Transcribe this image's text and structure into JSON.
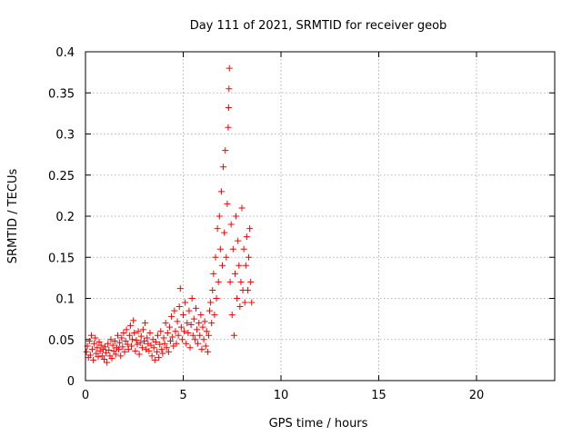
{
  "chart_data": {
    "type": "scatter",
    "title": "Day 111 of 2021, SRMTID for receiver geob",
    "xlabel": "GPS time / hours",
    "ylabel": "SRMTID / TECUs",
    "xlim": [
      0,
      24
    ],
    "ylim": [
      0,
      0.4
    ],
    "grid": true,
    "marker": "+",
    "color": "#ff0000",
    "xticks": [
      0,
      5,
      10,
      15,
      20
    ],
    "xtick_labels": [
      "0",
      "5",
      "10",
      "15",
      "20"
    ],
    "yticks": [
      0,
      0.05,
      0.1,
      0.15,
      0.2,
      0.25,
      0.3,
      0.35,
      0.4
    ],
    "ytick_labels": [
      "0",
      "0.05",
      "0.1",
      "0.15",
      "0.2",
      "0.25",
      "0.3",
      "0.35",
      "0.4"
    ],
    "series": [
      {
        "name": "SRMTID",
        "points": [
          [
            0.05,
            0.035
          ],
          [
            0.1,
            0.042
          ],
          [
            0.15,
            0.028
          ],
          [
            0.2,
            0.048
          ],
          [
            0.25,
            0.031
          ],
          [
            0.3,
            0.055
          ],
          [
            0.35,
            0.038
          ],
          [
            0.4,
            0.025
          ],
          [
            0.45,
            0.045
          ],
          [
            0.5,
            0.052
          ],
          [
            0.55,
            0.033
          ],
          [
            0.6,
            0.04
          ],
          [
            0.65,
            0.029
          ],
          [
            0.7,
            0.047
          ],
          [
            0.75,
            0.036
          ],
          [
            0.8,
            0.043
          ],
          [
            0.85,
            0.03
          ],
          [
            0.9,
            0.038
          ],
          [
            0.95,
            0.026
          ],
          [
            1.0,
            0.041
          ],
          [
            1.05,
            0.034
          ],
          [
            1.1,
            0.022
          ],
          [
            1.15,
            0.045
          ],
          [
            1.2,
            0.037
          ],
          [
            1.25,
            0.03
          ],
          [
            1.3,
            0.05
          ],
          [
            1.35,
            0.027
          ],
          [
            1.4,
            0.043
          ],
          [
            1.45,
            0.036
          ],
          [
            1.5,
            0.048
          ],
          [
            1.55,
            0.032
          ],
          [
            1.6,
            0.04
          ],
          [
            1.65,
            0.055
          ],
          [
            1.7,
            0.038
          ],
          [
            1.75,
            0.046
          ],
          [
            1.8,
            0.03
          ],
          [
            1.85,
            0.052
          ],
          [
            1.9,
            0.041
          ],
          [
            1.95,
            0.058
          ],
          [
            2.0,
            0.035
          ],
          [
            2.05,
            0.048
          ],
          [
            2.1,
            0.062
          ],
          [
            2.15,
            0.044
          ],
          [
            2.2,
            0.038
          ],
          [
            2.25,
            0.055
          ],
          [
            2.3,
            0.067
          ],
          [
            2.35,
            0.042
          ],
          [
            2.4,
            0.05
          ],
          [
            2.45,
            0.073
          ],
          [
            2.5,
            0.058
          ],
          [
            2.55,
            0.036
          ],
          [
            2.6,
            0.049
          ],
          [
            2.65,
            0.044
          ],
          [
            2.7,
            0.06
          ],
          [
            2.75,
            0.032
          ],
          [
            2.8,
            0.046
          ],
          [
            2.85,
            0.054
          ],
          [
            2.9,
            0.04
          ],
          [
            2.95,
            0.062
          ],
          [
            3.0,
            0.048
          ],
          [
            3.05,
            0.07
          ],
          [
            3.1,
            0.038
          ],
          [
            3.15,
            0.052
          ],
          [
            3.2,
            0.045
          ],
          [
            3.25,
            0.036
          ],
          [
            3.3,
            0.058
          ],
          [
            3.35,
            0.043
          ],
          [
            3.4,
            0.03
          ],
          [
            3.45,
            0.05
          ],
          [
            3.5,
            0.04
          ],
          [
            3.55,
            0.025
          ],
          [
            3.6,
            0.047
          ],
          [
            3.65,
            0.035
          ],
          [
            3.7,
            0.055
          ],
          [
            3.75,
            0.028
          ],
          [
            3.8,
            0.044
          ],
          [
            3.85,
            0.06
          ],
          [
            3.9,
            0.038
          ],
          [
            3.95,
            0.033
          ],
          [
            4.0,
            0.052
          ],
          [
            4.05,
            0.045
          ],
          [
            4.1,
            0.07
          ],
          [
            4.15,
            0.04
          ],
          [
            4.2,
            0.058
          ],
          [
            4.25,
            0.035
          ],
          [
            4.3,
            0.065
          ],
          [
            4.35,
            0.048
          ],
          [
            4.4,
            0.078
          ],
          [
            4.45,
            0.053
          ],
          [
            4.5,
            0.042
          ],
          [
            4.55,
            0.085
          ],
          [
            4.6,
            0.06
          ],
          [
            4.65,
            0.045
          ],
          [
            4.7,
            0.072
          ],
          [
            4.75,
            0.055
          ],
          [
            4.8,
            0.09
          ],
          [
            4.85,
            0.112
          ],
          [
            4.9,
            0.065
          ],
          [
            4.95,
            0.05
          ],
          [
            5.0,
            0.08
          ],
          [
            5.05,
            0.06
          ],
          [
            5.1,
            0.095
          ],
          [
            5.15,
            0.045
          ],
          [
            5.2,
            0.07
          ],
          [
            5.25,
            0.058
          ],
          [
            5.3,
            0.085
          ],
          [
            5.35,
            0.04
          ],
          [
            5.4,
            0.068
          ],
          [
            5.45,
            0.1
          ],
          [
            5.5,
            0.055
          ],
          [
            5.55,
            0.075
          ],
          [
            5.6,
            0.05
          ],
          [
            5.65,
            0.088
          ],
          [
            5.7,
            0.062
          ],
          [
            5.75,
            0.045
          ],
          [
            5.8,
            0.07
          ],
          [
            5.85,
            0.055
          ],
          [
            5.9,
            0.08
          ],
          [
            5.95,
            0.038
          ],
          [
            6.0,
            0.065
          ],
          [
            6.05,
            0.05
          ],
          [
            6.1,
            0.072
          ],
          [
            6.15,
            0.042
          ],
          [
            6.2,
            0.06
          ],
          [
            6.25,
            0.035
          ],
          [
            6.3,
            0.055
          ],
          [
            6.35,
            0.085
          ],
          [
            6.4,
            0.095
          ],
          [
            6.45,
            0.07
          ],
          [
            6.5,
            0.11
          ],
          [
            6.55,
            0.13
          ],
          [
            6.6,
            0.08
          ],
          [
            6.65,
            0.15
          ],
          [
            6.7,
            0.1
          ],
          [
            6.75,
            0.185
          ],
          [
            6.8,
            0.12
          ],
          [
            6.85,
            0.2
          ],
          [
            6.9,
            0.16
          ],
          [
            6.95,
            0.23
          ],
          [
            7.0,
            0.14
          ],
          [
            7.05,
            0.26
          ],
          [
            7.1,
            0.18
          ],
          [
            7.15,
            0.28
          ],
          [
            7.2,
            0.15
          ],
          [
            7.25,
            0.215
          ],
          [
            7.3,
            0.308
          ],
          [
            7.32,
            0.332
          ],
          [
            7.34,
            0.355
          ],
          [
            7.36,
            0.38
          ],
          [
            7.4,
            0.12
          ],
          [
            7.45,
            0.19
          ],
          [
            7.5,
            0.08
          ],
          [
            7.55,
            0.16
          ],
          [
            7.6,
            0.055
          ],
          [
            7.65,
            0.13
          ],
          [
            7.7,
            0.2
          ],
          [
            7.75,
            0.1
          ],
          [
            7.8,
            0.17
          ],
          [
            7.85,
            0.14
          ],
          [
            7.9,
            0.09
          ],
          [
            7.95,
            0.12
          ],
          [
            8.0,
            0.21
          ],
          [
            8.05,
            0.11
          ],
          [
            8.1,
            0.16
          ],
          [
            8.15,
            0.095
          ],
          [
            8.2,
            0.14
          ],
          [
            8.25,
            0.175
          ],
          [
            8.3,
            0.11
          ],
          [
            8.35,
            0.15
          ],
          [
            8.4,
            0.185
          ],
          [
            8.45,
            0.12
          ],
          [
            8.5,
            0.095
          ]
        ]
      }
    ]
  }
}
